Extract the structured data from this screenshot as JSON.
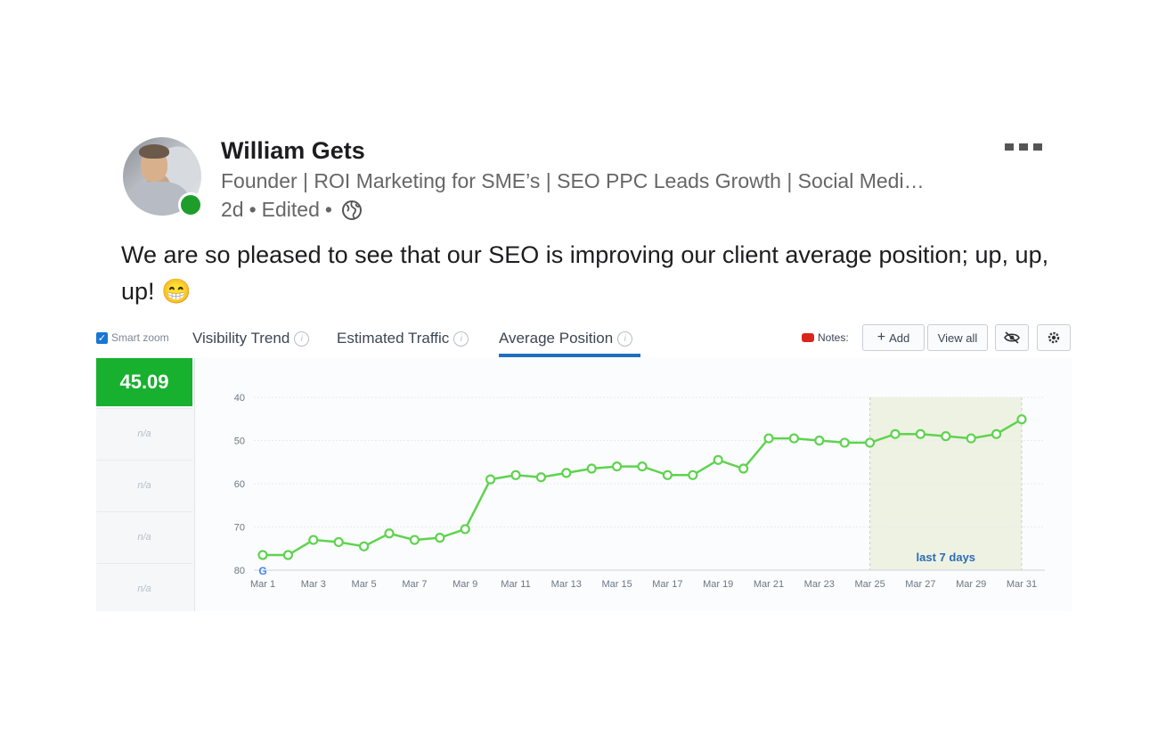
{
  "post": {
    "author_name": "William Gets",
    "headline": "Founder | ROI Marketing for SME’s | SEO PPC Leads Growth | Social Medi…",
    "meta_time": "2d",
    "meta_edited": "Edited",
    "separator": "•",
    "text": "We are so pleased to see that our SEO is improving our client average position; up, up, up! 😁",
    "icons": {
      "more": "more-horizontal-icon",
      "visibility": "globe-icon"
    },
    "presence_color": "#1f9d2b"
  },
  "analytics": {
    "smart_zoom_label": "Smart zoom",
    "tabs": [
      {
        "label": "Visibility Trend"
      },
      {
        "label": "Estimated Traffic"
      },
      {
        "label": "Average Position"
      }
    ],
    "notes_label": "Notes:",
    "add_label": "Add",
    "view_all_label": "View all",
    "current_value": "45.09",
    "na_label": "n/a",
    "accent_green": "#17b12f",
    "line_green": "#5fd34f",
    "tab_active_color": "#1f6fbf"
  },
  "chart_data": {
    "type": "line",
    "x": [
      "Mar 1",
      "Mar 2",
      "Mar 3",
      "Mar 4",
      "Mar 5",
      "Mar 6",
      "Mar 7",
      "Mar 8",
      "Mar 9",
      "Mar 10",
      "Mar 11",
      "Mar 12",
      "Mar 13",
      "Mar 14",
      "Mar 15",
      "Mar 16",
      "Mar 17",
      "Mar 18",
      "Mar 19",
      "Mar 20",
      "Mar 21",
      "Mar 22",
      "Mar 23",
      "Mar 24",
      "Mar 25",
      "Mar 26",
      "Mar 27",
      "Mar 28",
      "Mar 29",
      "Mar 30",
      "Mar 31"
    ],
    "x_tick_labels": [
      "Mar 1",
      "Mar 3",
      "Mar 5",
      "Mar 7",
      "Mar 9",
      "Mar 11",
      "Mar 13",
      "Mar 15",
      "Mar 17",
      "Mar 19",
      "Mar 21",
      "Mar 23",
      "Mar 25",
      "Mar 27",
      "Mar 29",
      "Mar 31"
    ],
    "series": [
      {
        "values": [
          76.5,
          76.5,
          73.0,
          73.5,
          74.5,
          71.5,
          73.0,
          72.5,
          70.5,
          59.0,
          58.0,
          58.5,
          57.5,
          56.5,
          56.0,
          56.0,
          58.0,
          58.0,
          54.5,
          56.5,
          49.5,
          49.5,
          50.0,
          50.5,
          50.5,
          48.5,
          48.5,
          49.0,
          49.5,
          48.5,
          45.09
        ]
      }
    ],
    "y_ticks": [
      40,
      50,
      60,
      70,
      80
    ],
    "ylim": [
      40,
      80
    ],
    "y_inverted": true,
    "highlight": {
      "from": "Mar 25",
      "to": "Mar 31",
      "label": "last 7 days"
    },
    "grid": true,
    "marker_at_start": "google-icon"
  }
}
